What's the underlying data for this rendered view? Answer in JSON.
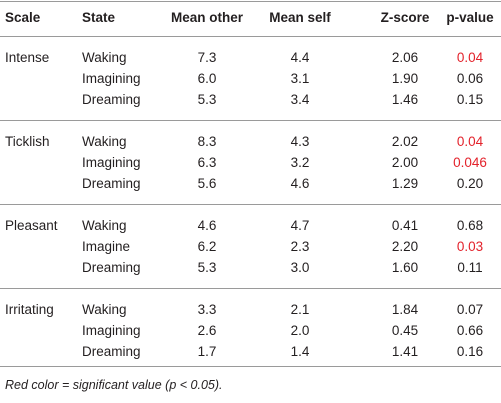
{
  "table": {
    "header": [
      "Scale",
      "State",
      "Mean other",
      "Mean self",
      "Z-score",
      "p-value"
    ],
    "groups": [
      {
        "scale": "Intense",
        "rows": [
          {
            "state": "Waking",
            "cells": [
              "7.3",
              "4.4",
              "2.06",
              "0.04"
            ],
            "p_color": "#e3222b"
          },
          {
            "state": "Imagining",
            "cells": [
              "6.0",
              "3.1",
              "1.90",
              "0.06"
            ],
            "p_color": "#231f20"
          },
          {
            "state": "Dreaming",
            "cells": [
              "5.3",
              "3.4",
              "1.46",
              "0.15"
            ],
            "p_color": "#231f20"
          }
        ]
      },
      {
        "scale": "Ticklish",
        "rows": [
          {
            "state": "Waking",
            "cells": [
              "8.3",
              "4.3",
              "2.02",
              "0.04"
            ],
            "p_color": "#e3222b"
          },
          {
            "state": "Imagining",
            "cells": [
              "6.3",
              "3.2",
              "2.00",
              "0.046"
            ],
            "p_color": "#e3222b"
          },
          {
            "state": "Dreaming",
            "cells": [
              "5.6",
              "4.6",
              "1.29",
              "0.20"
            ],
            "p_color": "#231f20"
          }
        ]
      },
      {
        "scale": "Pleasant",
        "rows": [
          {
            "state": "Waking",
            "cells": [
              "4.6",
              "4.7",
              "0.41",
              "0.68"
            ],
            "p_color": "#231f20"
          },
          {
            "state": "Imagine",
            "cells": [
              "6.2",
              "2.3",
              "2.20",
              "0.03"
            ],
            "p_color": "#e3222b"
          },
          {
            "state": "Dreaming",
            "cells": [
              "5.3",
              "3.0",
              "1.60",
              "0.11"
            ],
            "p_color": "#231f20"
          }
        ]
      },
      {
        "scale": "Irritating",
        "rows": [
          {
            "state": "Waking",
            "cells": [
              "3.3",
              "2.1",
              "1.84",
              "0.07"
            ],
            "p_color": "#231f20"
          },
          {
            "state": "Imagining",
            "cells": [
              "2.6",
              "2.0",
              "0.45",
              "0.66"
            ],
            "p_color": "#231f20"
          },
          {
            "state": "Dreaming",
            "cells": [
              "1.7",
              "1.4",
              "1.41",
              "0.16"
            ],
            "p_color": "#231f20"
          }
        ]
      }
    ],
    "footnote": "Red color = significant value (p < 0.05)."
  }
}
